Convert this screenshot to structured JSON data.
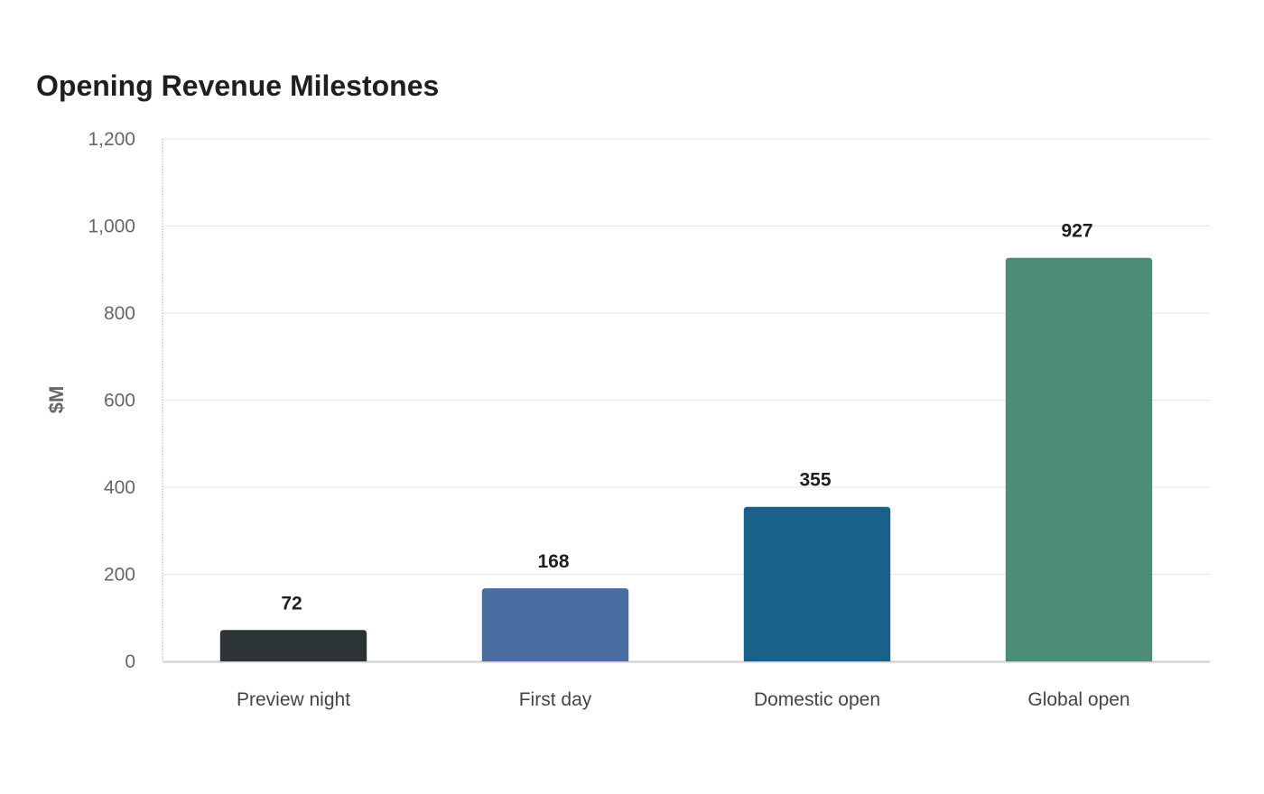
{
  "chart_data": {
    "type": "bar",
    "title": "Opening Revenue Milestones",
    "xlabel": "",
    "ylabel": "$M",
    "categories": [
      "Preview night",
      "First day",
      "Domestic open",
      "Global open"
    ],
    "values": [
      72,
      168,
      355,
      927
    ],
    "data_labels": [
      "72",
      "168",
      "355",
      "927"
    ],
    "colors": [
      "#2d3436",
      "#4a6da2",
      "#1a6189",
      "#4e8c7a"
    ],
    "ylim": [
      0,
      1200
    ],
    "yticks": [
      0,
      200,
      400,
      600,
      800,
      1000,
      1200
    ],
    "ytick_labels": [
      "0",
      "200",
      "400",
      "600",
      "800",
      "1,000",
      "1,200"
    ],
    "grid": true,
    "legend": "none"
  }
}
